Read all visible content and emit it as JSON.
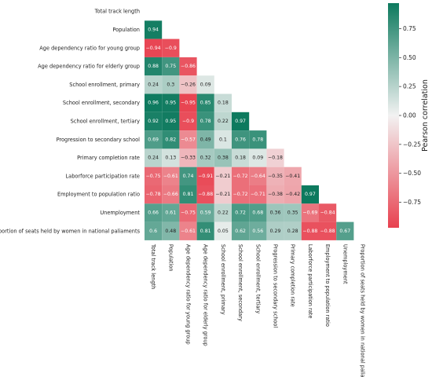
{
  "chart_data": {
    "type": "heatmap",
    "variables": [
      "Total track length",
      "Population",
      "Age dependency ratio for young group",
      "Age dependency ratio for elderly group",
      "School enrollment, primary",
      "School enrollment, secondary",
      "School enrollment, tertiary",
      "Progression to secondary school",
      "Primary completion rate",
      "Laborforce participation rate",
      "Employment to population ratio",
      "Unemployment",
      "Proportion of seats held by women in national paliaments"
    ],
    "matrix_lower": [
      [],
      [
        0.94
      ],
      [
        -0.94,
        -0.9
      ],
      [
        0.88,
        0.75,
        -0.86
      ],
      [
        0.24,
        0.3,
        -0.26,
        0.09
      ],
      [
        0.96,
        0.95,
        -0.95,
        0.85,
        0.18
      ],
      [
        0.92,
        0.95,
        -0.9,
        0.78,
        0.22,
        0.97
      ],
      [
        0.69,
        0.82,
        -0.57,
        0.49,
        0.1,
        0.76,
        0.78
      ],
      [
        0.24,
        0.13,
        -0.33,
        0.32,
        0.38,
        0.18,
        0.09,
        -0.18
      ],
      [
        -0.75,
        -0.61,
        0.74,
        -0.91,
        -0.21,
        -0.72,
        -0.64,
        -0.35,
        -0.41
      ],
      [
        -0.78,
        -0.66,
        0.81,
        -0.88,
        -0.21,
        -0.72,
        -0.71,
        -0.38,
        -0.42,
        0.97
      ],
      [
        0.66,
        0.61,
        -0.75,
        0.59,
        0.22,
        0.72,
        0.68,
        0.36,
        0.35,
        -0.69,
        -0.84
      ],
      [
        0.6,
        0.48,
        -0.61,
        0.81,
        0.05,
        0.62,
        0.56,
        0.29,
        0.28,
        -0.88,
        -0.88,
        0.67
      ]
    ],
    "colorbar": {
      "label": "Pearson correlation",
      "ticks": [
        "0.75",
        "0.50",
        "0.25",
        "0.00",
        "−0.25",
        "−0.50",
        "−0.75"
      ],
      "tick_values": [
        0.75,
        0.5,
        0.25,
        0.0,
        -0.25,
        -0.5,
        -0.75
      ],
      "range": [
        -0.97,
        0.97
      ]
    },
    "colors": {
      "positive": "#0d7a5e",
      "neutral": "#f2f2f2",
      "negative": "#e8414f"
    },
    "title": ""
  }
}
